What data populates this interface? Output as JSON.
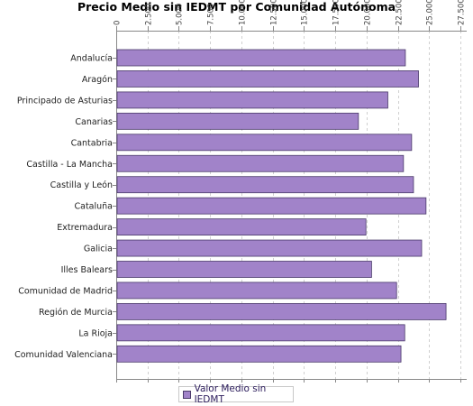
{
  "chart_data": {
    "type": "bar",
    "orientation": "horizontal",
    "title": "Precio Medio sin IEDMT por Comunidad Autónoma",
    "categories": [
      "Andalucía",
      "Aragón",
      "Principado de Asturias",
      "Canarias",
      "Cantabria",
      "Castilla - La Mancha",
      "Castilla y León",
      "Cataluña",
      "Extremadura",
      "Galicia",
      "Illes Balears",
      "Comunidad de Madrid",
      "Región de Murcia",
      "La Rioja",
      "Comunidad Valenciana"
    ],
    "series": [
      {
        "name": "Valor Medio sin IEDMT",
        "values": [
          23100,
          24150,
          21700,
          19350,
          23600,
          22950,
          23750,
          24750,
          19950,
          24400,
          20400,
          22400,
          26350,
          23050,
          22750
        ]
      }
    ],
    "xlim": [
      0,
      28000
    ],
    "ticks": [
      "0",
      "2.500",
      "5.000",
      "7.500",
      "10.000",
      "12.500",
      "15.000",
      "17.500",
      "20.000",
      "22.500",
      "25.000",
      "27.500"
    ],
    "tick_values": [
      0,
      2500,
      5000,
      7500,
      10000,
      12500,
      15000,
      17500,
      20000,
      22500,
      25000,
      27500
    ],
    "grid": true,
    "legend_position": "bottom",
    "colors": {
      "bar": "#a183c9",
      "bar_edge": "#4a3a6a",
      "grid": "#d0d0d0"
    }
  }
}
